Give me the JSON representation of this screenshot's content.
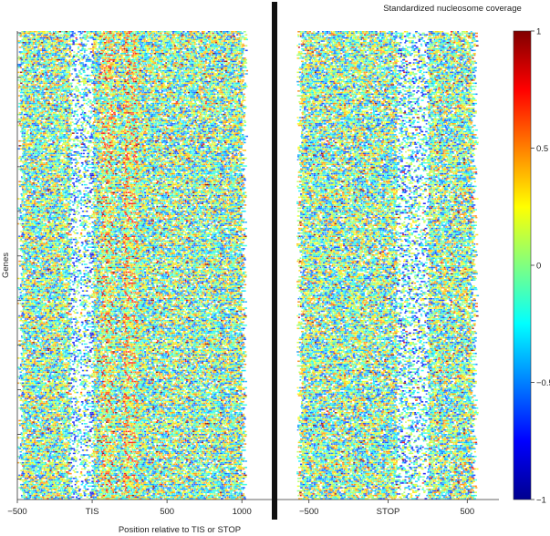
{
  "chart_data": {
    "type": "heatmap",
    "title": "Standardized nucleosome coverage",
    "xlabel": "Position relative to TIS or STOP",
    "ylabel": "Genes",
    "panels": [
      {
        "name": "TIS",
        "xlim": [
          -500,
          1200
        ],
        "ticks": [
          -500,
          0,
          500,
          1000
        ],
        "tick_labels": [
          "−500",
          "TIS",
          "500",
          "1000"
        ],
        "data_extent": [
          -480,
          1030
        ],
        "depleted_region": [
          -150,
          0
        ],
        "positioned_peaks": [
          100,
          250
        ]
      },
      {
        "name": "STOP",
        "xlim": [
          -700,
          700
        ],
        "ticks": [
          -500,
          0,
          500
        ],
        "tick_labels": [
          "−500",
          "STOP",
          "500"
        ],
        "data_extent": [
          -560,
          560
        ],
        "depleted_region": [
          50,
          250
        ]
      }
    ],
    "colorbar": {
      "range": [
        -1,
        1
      ],
      "ticks": [
        1,
        0.5,
        0,
        -0.5,
        -1
      ],
      "tick_labels": [
        "1",
        "0.5",
        "0",
        "−0.5",
        "−1"
      ],
      "colormap": [
        "#00008f",
        "#0000ff",
        "#0080ff",
        "#00ffff",
        "#80ff80",
        "#ffff00",
        "#ff8000",
        "#ff0000",
        "#800000"
      ]
    },
    "gene_rows": 300,
    "separator_color": "#111111"
  }
}
